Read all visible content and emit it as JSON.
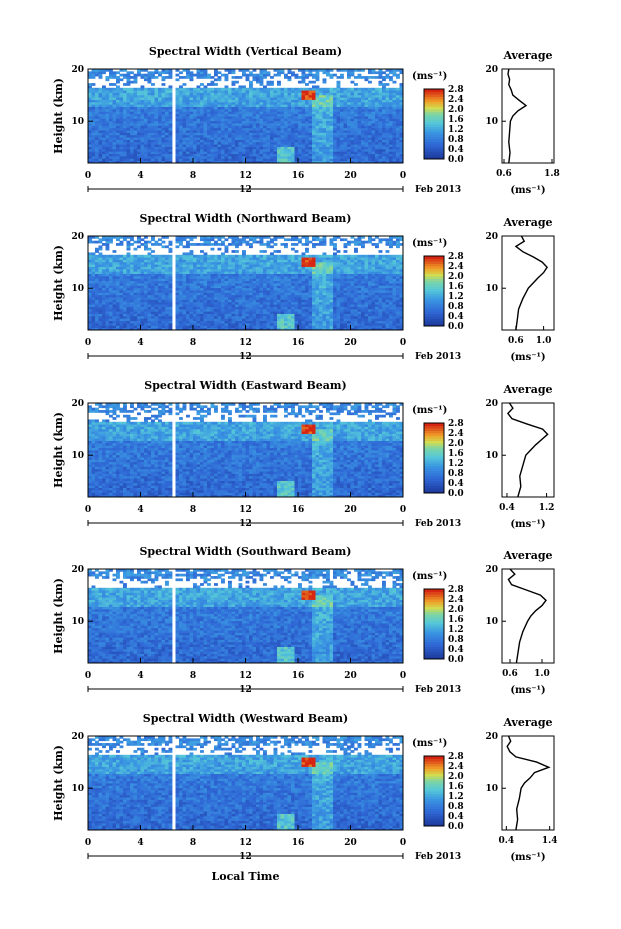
{
  "figure": {
    "xlabel": "Local Time",
    "date_label": "Feb 2013",
    "day_label": "12",
    "colorbar_unit": "(ms⁻¹)",
    "colorbar_ticks": [
      "0.0",
      "0.4",
      "0.8",
      "1.2",
      "1.6",
      "2.0",
      "2.4",
      "2.8"
    ],
    "colors": {
      "low": "#1e3a9c",
      "mid": "#56c8d8",
      "high": "#d62612",
      "background": "#ffffff"
    }
  },
  "chart_data": [
    {
      "type": "heatmap",
      "title": "Spectral Width (Vertical Beam)",
      "ylabel": "Height (km)",
      "xlabel": "Local Time",
      "x_ticks": [
        "0",
        "4",
        "8",
        "12",
        "16",
        "20",
        "0"
      ],
      "y_ticks": [
        "10",
        "20"
      ],
      "xlim": [
        0,
        24
      ],
      "ylim": [
        2,
        20
      ],
      "clim": [
        0.0,
        2.8
      ],
      "gap_at_hour": 6.6,
      "profile": {
        "title": "Average",
        "xlabel": "(ms⁻¹)",
        "x_ticks": [
          "0.6",
          "1.8"
        ],
        "y_ticks": [
          "10",
          "20"
        ],
        "xlim": [
          0.55,
          1.85
        ],
        "height": [
          2,
          4,
          6,
          8,
          10,
          11,
          12,
          13,
          14,
          15,
          16,
          17,
          18,
          19,
          20
        ],
        "values": [
          0.72,
          0.75,
          0.72,
          0.74,
          0.76,
          0.82,
          0.95,
          1.15,
          0.98,
          0.82,
          0.78,
          0.72,
          0.74,
          0.7,
          0.72
        ]
      }
    },
    {
      "type": "heatmap",
      "title": "Spectral Width (Northward Beam)",
      "ylabel": "Height (km)",
      "xlabel": "Local Time",
      "x_ticks": [
        "0",
        "4",
        "8",
        "12",
        "16",
        "20",
        "0"
      ],
      "y_ticks": [
        "10",
        "20"
      ],
      "xlim": [
        0,
        24
      ],
      "ylim": [
        2,
        20
      ],
      "clim": [
        0.0,
        2.8
      ],
      "gap_at_hour": 6.6,
      "profile": {
        "title": "Average",
        "xlabel": "(ms⁻¹)",
        "x_ticks": [
          "0.6",
          "1.0"
        ],
        "y_ticks": [
          "10",
          "20"
        ],
        "xlim": [
          0.4,
          1.15
        ],
        "height": [
          2,
          4,
          6,
          8,
          10,
          11,
          12,
          13,
          14,
          15,
          16,
          17,
          18,
          19,
          20
        ],
        "values": [
          0.6,
          0.62,
          0.64,
          0.7,
          0.78,
          0.85,
          0.92,
          1.0,
          1.05,
          0.98,
          0.85,
          0.7,
          0.6,
          0.72,
          0.68
        ]
      }
    },
    {
      "type": "heatmap",
      "title": "Spectral Width (Eastward Beam)",
      "ylabel": "Height (km)",
      "xlabel": "Local Time",
      "x_ticks": [
        "0",
        "4",
        "8",
        "12",
        "16",
        "20",
        "0"
      ],
      "y_ticks": [
        "10",
        "20"
      ],
      "xlim": [
        0,
        24
      ],
      "ylim": [
        2,
        20
      ],
      "clim": [
        0.0,
        2.8
      ],
      "gap_at_hour": 6.6,
      "profile": {
        "title": "Average",
        "xlabel": "(ms⁻¹)",
        "x_ticks": [
          "0.4",
          "1.2"
        ],
        "y_ticks": [
          "10",
          "20"
        ],
        "xlim": [
          0.3,
          1.35
        ],
        "height": [
          2,
          4,
          6,
          8,
          10,
          11,
          12,
          13,
          14,
          15,
          16,
          17,
          18,
          19,
          20
        ],
        "values": [
          0.62,
          0.68,
          0.66,
          0.72,
          0.78,
          0.88,
          0.98,
          1.1,
          1.22,
          1.12,
          0.8,
          0.5,
          0.42,
          0.52,
          0.45
        ]
      }
    },
    {
      "type": "heatmap",
      "title": "Spectral Width (Southward Beam)",
      "ylabel": "Height (km)",
      "xlabel": "Local Time",
      "x_ticks": [
        "0",
        "4",
        "8",
        "12",
        "16",
        "20",
        "0"
      ],
      "y_ticks": [
        "10",
        "20"
      ],
      "xlim": [
        0,
        24
      ],
      "ylim": [
        2,
        20
      ],
      "clim": [
        0.0,
        2.8
      ],
      "gap_at_hour": 6.6,
      "profile": {
        "title": "Average",
        "xlabel": "(ms⁻¹)",
        "x_ticks": [
          "0.6",
          "1.0"
        ],
        "y_ticks": [
          "10",
          "20"
        ],
        "xlim": [
          0.5,
          1.15
        ],
        "height": [
          2,
          4,
          6,
          8,
          10,
          11,
          12,
          13,
          14,
          15,
          16,
          17,
          18,
          19,
          20
        ],
        "values": [
          0.68,
          0.7,
          0.72,
          0.76,
          0.82,
          0.86,
          0.92,
          1.0,
          1.05,
          0.98,
          0.8,
          0.62,
          0.58,
          0.66,
          0.6
        ]
      }
    },
    {
      "type": "heatmap",
      "title": "Spectral Width (Westward Beam)",
      "ylabel": "Height (km)",
      "xlabel": "Local Time",
      "x_ticks": [
        "0",
        "4",
        "8",
        "12",
        "16",
        "20",
        "0"
      ],
      "y_ticks": [
        "10",
        "20"
      ],
      "xlim": [
        0,
        24
      ],
      "ylim": [
        2,
        20
      ],
      "clim": [
        0.0,
        2.8
      ],
      "gap_at_hour": 6.6,
      "profile": {
        "title": "Average",
        "xlabel": "(ms⁻¹)",
        "x_ticks": [
          "0.4",
          "1.4"
        ],
        "y_ticks": [
          "10",
          "20"
        ],
        "xlim": [
          0.3,
          1.5
        ],
        "height": [
          2,
          4,
          6,
          8,
          10,
          11,
          12,
          13,
          14,
          15,
          16,
          17,
          18,
          19,
          20
        ],
        "values": [
          0.62,
          0.66,
          0.64,
          0.7,
          0.74,
          0.82,
          0.95,
          1.05,
          1.38,
          1.1,
          0.62,
          0.48,
          0.42,
          0.5,
          0.45
        ]
      }
    }
  ]
}
